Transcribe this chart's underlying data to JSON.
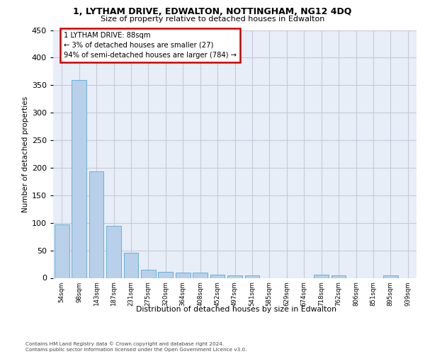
{
  "title_line1": "1, LYTHAM DRIVE, EDWALTON, NOTTINGHAM, NG12 4DQ",
  "title_line2": "Size of property relative to detached houses in Edwalton",
  "xlabel": "Distribution of detached houses by size in Edwalton",
  "ylabel": "Number of detached properties",
  "footer_line1": "Contains HM Land Registry data © Crown copyright and database right 2024.",
  "footer_line2": "Contains public sector information licensed under the Open Government Licence v3.0.",
  "annotation_title": "1 LYTHAM DRIVE: 88sqm",
  "annotation_line1": "← 3% of detached houses are smaller (27)",
  "annotation_line2": "94% of semi-detached houses are larger (784) →",
  "categories": [
    "54sqm",
    "98sqm",
    "143sqm",
    "187sqm",
    "231sqm",
    "275sqm",
    "320sqm",
    "364sqm",
    "408sqm",
    "452sqm",
    "497sqm",
    "541sqm",
    "585sqm",
    "629sqm",
    "674sqm",
    "718sqm",
    "762sqm",
    "806sqm",
    "851sqm",
    "895sqm",
    "939sqm"
  ],
  "values": [
    97,
    360,
    194,
    95,
    46,
    15,
    11,
    10,
    10,
    6,
    4,
    4,
    0,
    0,
    0,
    6,
    5,
    0,
    0,
    4,
    0
  ],
  "bar_color": "#b8d0ea",
  "bar_edge_color": "#6aafd6",
  "bg_color": "#e8eef8",
  "grid_color": "#c8c8d8",
  "ylim": [
    0,
    450
  ],
  "yticks": [
    0,
    50,
    100,
    150,
    200,
    250,
    300,
    350,
    400,
    450
  ]
}
